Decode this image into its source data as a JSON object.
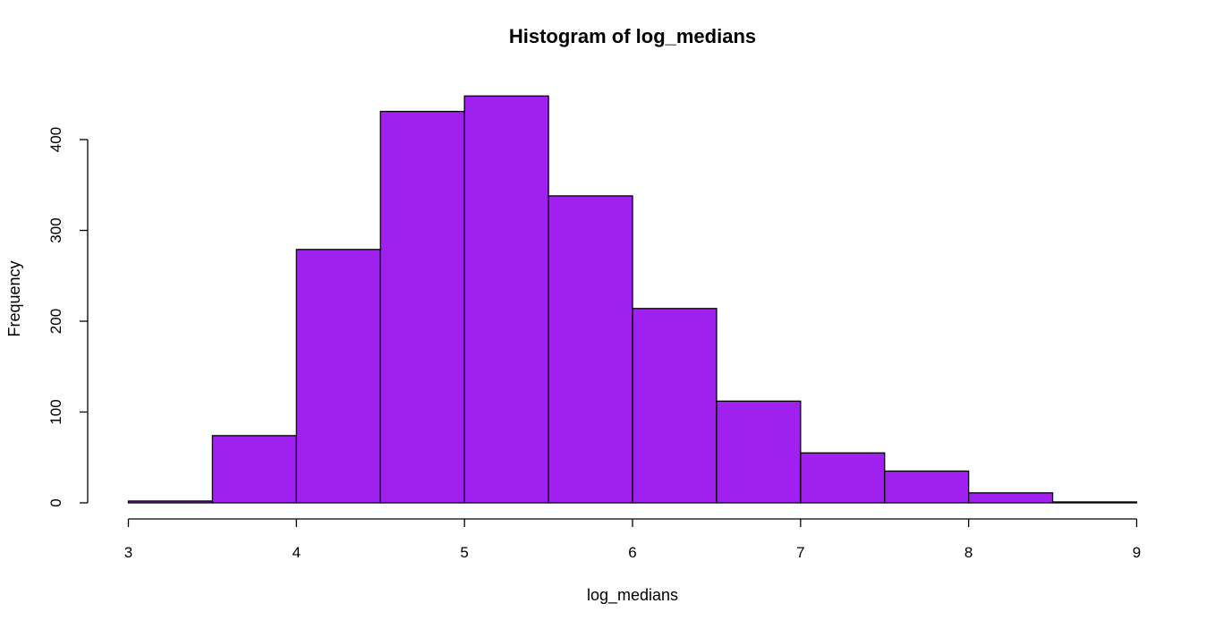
{
  "chart_data": {
    "type": "bar",
    "title": "Histogram of log_medians",
    "xlabel": "log_medians",
    "ylabel": "Frequency",
    "bin_edges": [
      3,
      3.5,
      4,
      4.5,
      5,
      5.5,
      6,
      6.5,
      7,
      7.5,
      8,
      8.5,
      9
    ],
    "values": [
      2,
      74,
      279,
      431,
      448,
      338,
      214,
      112,
      55,
      35,
      11,
      1
    ],
    "xlim": [
      3,
      9
    ],
    "ylim": [
      0,
      448
    ],
    "x_ticks": [
      3,
      4,
      5,
      6,
      7,
      8,
      9
    ],
    "y_ticks": [
      0,
      100,
      200,
      300,
      400
    ],
    "bar_color": "#A020F0",
    "grid": false,
    "legend": "none"
  }
}
